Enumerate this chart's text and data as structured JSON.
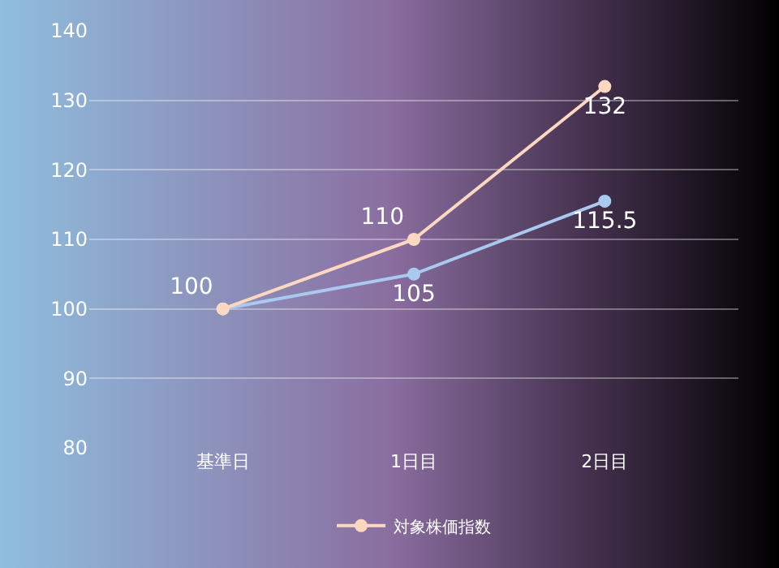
{
  "chart_data": {
    "type": "line",
    "categories": [
      "基準日",
      "1日目",
      "2日目"
    ],
    "series": [
      {
        "color": "#a9c9ee",
        "values": [
          100,
          105,
          115.5
        ],
        "value_labels": [
          null,
          "105",
          "115.5"
        ]
      },
      {
        "name": "対象株価指数",
        "color": "#fcd8c0",
        "values": [
          100,
          110,
          132
        ],
        "value_labels": [
          "100",
          "110",
          "132"
        ]
      }
    ],
    "ylim": [
      80,
      140
    ],
    "yticks": [
      80,
      90,
      100,
      110,
      120,
      130,
      140
    ],
    "grid": "y",
    "legend": "bottom",
    "marker": "circle",
    "line_style": "solid"
  }
}
